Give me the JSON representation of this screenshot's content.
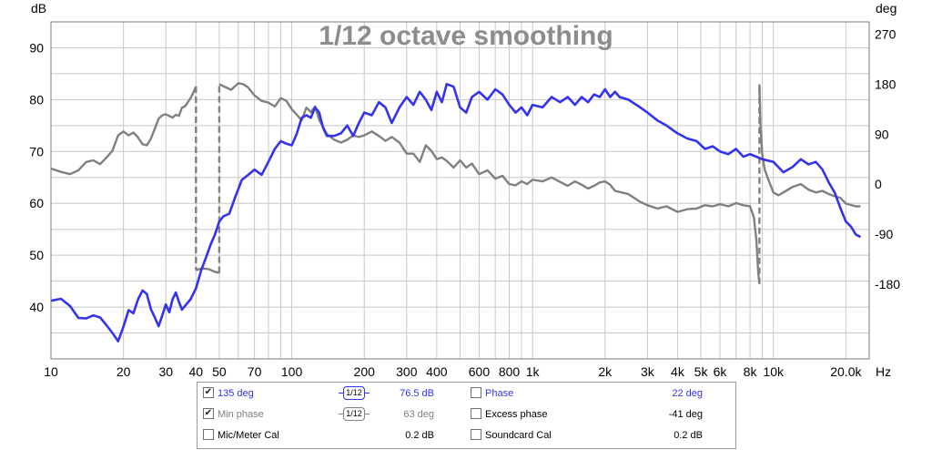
{
  "chart_data": {
    "type": "line",
    "title": "1/12 octave smoothing",
    "x_unit": "Hz",
    "left_axis": {
      "unit": "dB",
      "range": [
        30,
        95
      ],
      "ticks": [
        "90",
        "80",
        "70",
        "60",
        "50",
        "40"
      ]
    },
    "right_axis": {
      "unit": "deg",
      "range": [
        -315,
        292.5
      ],
      "ticks": [
        "270",
        "180",
        "90",
        "0",
        "-90",
        "-180"
      ]
    },
    "x_range": [
      10,
      25000
    ],
    "x_scale": "log",
    "x_tick_labels": [
      {
        "f": 10,
        "label": "10"
      },
      {
        "f": 20,
        "label": "20"
      },
      {
        "f": 30,
        "label": "30"
      },
      {
        "f": 40,
        "label": "40"
      },
      {
        "f": 50,
        "label": "50"
      },
      {
        "f": 70,
        "label": "70"
      },
      {
        "f": 100,
        "label": "100"
      },
      {
        "f": 200,
        "label": "200"
      },
      {
        "f": 300,
        "label": "300"
      },
      {
        "f": 400,
        "label": "400"
      },
      {
        "f": 600,
        "label": "600"
      },
      {
        "f": 800,
        "label": "800"
      },
      {
        "f": 1000,
        "label": "1k"
      },
      {
        "f": 2000,
        "label": "2k"
      },
      {
        "f": 3000,
        "label": "3k"
      },
      {
        "f": 4000,
        "label": "4k"
      },
      {
        "f": 5000,
        "label": "5k"
      },
      {
        "f": 6000,
        "label": "6k"
      },
      {
        "f": 8000,
        "label": "8k"
      },
      {
        "f": 10000,
        "label": "10k"
      },
      {
        "f": 20000,
        "label": "20.0k"
      }
    ],
    "grid": true,
    "colors": {
      "spl": "#3333ee",
      "phase": "#808080",
      "grid": "#c8c8c8",
      "background": "#ffffff"
    },
    "series": [
      {
        "name": "135 deg",
        "axis": "left",
        "style": "solid",
        "points": [
          [
            10,
            41.2
          ],
          [
            11,
            41.6
          ],
          [
            12,
            40.2
          ],
          [
            13,
            37.9
          ],
          [
            14,
            37.8
          ],
          [
            15,
            38.4
          ],
          [
            16,
            38.0
          ],
          [
            17,
            36.5
          ],
          [
            18,
            35.0
          ],
          [
            19,
            33.4
          ],
          [
            20,
            36.2
          ],
          [
            21,
            39.4
          ],
          [
            22,
            38.8
          ],
          [
            23,
            41.5
          ],
          [
            24,
            43.2
          ],
          [
            25,
            42.5
          ],
          [
            26,
            39.6
          ],
          [
            27,
            38.0
          ],
          [
            28,
            36.3
          ],
          [
            29,
            38.4
          ],
          [
            30,
            40.5
          ],
          [
            31,
            39.0
          ],
          [
            32,
            41.5
          ],
          [
            33,
            42.8
          ],
          [
            34,
            41.0
          ],
          [
            35,
            39.5
          ],
          [
            36,
            40.2
          ],
          [
            38,
            41.5
          ],
          [
            40,
            43.6
          ],
          [
            42,
            47.0
          ],
          [
            44,
            49.5
          ],
          [
            46,
            52.0
          ],
          [
            48,
            54.0
          ],
          [
            50,
            56.5
          ],
          [
            52,
            57.5
          ],
          [
            55,
            58.0
          ],
          [
            58,
            61.0
          ],
          [
            62,
            64.5
          ],
          [
            66,
            65.5
          ],
          [
            70,
            66.5
          ],
          [
            75,
            65.5
          ],
          [
            80,
            68.0
          ],
          [
            85,
            70.5
          ],
          [
            90,
            72.0
          ],
          [
            95,
            71.5
          ],
          [
            100,
            71.2
          ],
          [
            105,
            73.5
          ],
          [
            110,
            76.5
          ],
          [
            115,
            77.0
          ],
          [
            120,
            76.5
          ],
          [
            125,
            78.5
          ],
          [
            130,
            77.5
          ],
          [
            135,
            74.5
          ],
          [
            140,
            73.0
          ],
          [
            150,
            73.0
          ],
          [
            160,
            73.5
          ],
          [
            170,
            75.0
          ],
          [
            180,
            73.0
          ],
          [
            190,
            75.5
          ],
          [
            200,
            77.5
          ],
          [
            215,
            77.0
          ],
          [
            230,
            79.5
          ],
          [
            245,
            78.5
          ],
          [
            260,
            75.5
          ],
          [
            280,
            78.5
          ],
          [
            300,
            80.5
          ],
          [
            320,
            79.0
          ],
          [
            340,
            81.5
          ],
          [
            360,
            80.0
          ],
          [
            380,
            78.0
          ],
          [
            400,
            81.5
          ],
          [
            420,
            79.5
          ],
          [
            440,
            83.0
          ],
          [
            470,
            82.5
          ],
          [
            500,
            78.5
          ],
          [
            530,
            77.5
          ],
          [
            560,
            80.5
          ],
          [
            600,
            81.5
          ],
          [
            650,
            80.0
          ],
          [
            700,
            82.0
          ],
          [
            750,
            81.0
          ],
          [
            800,
            79.0
          ],
          [
            850,
            77.5
          ],
          [
            900,
            78.5
          ],
          [
            950,
            77.0
          ],
          [
            1000,
            79.0
          ],
          [
            1100,
            78.5
          ],
          [
            1200,
            80.5
          ],
          [
            1300,
            79.5
          ],
          [
            1400,
            80.5
          ],
          [
            1500,
            79.0
          ],
          [
            1600,
            80.5
          ],
          [
            1700,
            79.5
          ],
          [
            1800,
            81.0
          ],
          [
            1900,
            80.5
          ],
          [
            2000,
            82.0
          ],
          [
            2100,
            80.5
          ],
          [
            2200,
            81.5
          ],
          [
            2300,
            80.5
          ],
          [
            2500,
            80.0
          ],
          [
            2800,
            78.5
          ],
          [
            3000,
            77.5
          ],
          [
            3300,
            76.0
          ],
          [
            3600,
            75.0
          ],
          [
            4000,
            73.5
          ],
          [
            4400,
            72.5
          ],
          [
            4800,
            72.0
          ],
          [
            5200,
            70.5
          ],
          [
            5600,
            71.0
          ],
          [
            6000,
            70.0
          ],
          [
            6500,
            69.5
          ],
          [
            7000,
            70.5
          ],
          [
            7500,
            69.0
          ],
          [
            8000,
            69.5
          ],
          [
            8500,
            69.0
          ],
          [
            9000,
            68.5
          ],
          [
            10000,
            68.0
          ],
          [
            11000,
            66.0
          ],
          [
            12000,
            67.0
          ],
          [
            13000,
            68.5
          ],
          [
            14000,
            67.5
          ],
          [
            15000,
            68.0
          ],
          [
            16000,
            66.5
          ],
          [
            17000,
            64.0
          ],
          [
            18000,
            62.0
          ],
          [
            19000,
            59.0
          ],
          [
            20000,
            56.5
          ],
          [
            21000,
            55.5
          ],
          [
            22000,
            54.0
          ],
          [
            23000,
            53.5
          ]
        ]
      },
      {
        "name": "Min phase",
        "axis": "right",
        "style": "solid",
        "points": [
          [
            10,
            28
          ],
          [
            11,
            22
          ],
          [
            12,
            18
          ],
          [
            13,
            25
          ],
          [
            14,
            40
          ],
          [
            15,
            43
          ],
          [
            16,
            36
          ],
          [
            17,
            48
          ],
          [
            18,
            60
          ],
          [
            19,
            88
          ],
          [
            20,
            95
          ],
          [
            21,
            88
          ],
          [
            22,
            93
          ],
          [
            23,
            84
          ],
          [
            24,
            72
          ],
          [
            25,
            70
          ],
          [
            26,
            82
          ],
          [
            27,
            100
          ],
          [
            28,
            118
          ],
          [
            29,
            124
          ],
          [
            30,
            126
          ],
          [
            32,
            120
          ],
          [
            33,
            125
          ],
          [
            34,
            123
          ],
          [
            35,
            138
          ],
          [
            36,
            140
          ],
          [
            38,
            155
          ],
          [
            39,
            165
          ],
          [
            40,
            176
          ],
          [
            40,
            -155
          ],
          [
            42,
            -152
          ],
          [
            45,
            -153
          ],
          [
            48,
            -158
          ],
          [
            50,
            -160
          ],
          [
            50,
            180
          ],
          [
            53,
            175
          ],
          [
            56,
            170
          ],
          [
            60,
            182
          ],
          [
            63,
            180
          ],
          [
            66,
            174
          ],
          [
            70,
            160
          ],
          [
            75,
            150
          ],
          [
            80,
            147
          ],
          [
            85,
            140
          ],
          [
            90,
            155
          ],
          [
            95,
            150
          ],
          [
            100,
            135
          ],
          [
            105,
            125
          ],
          [
            110,
            115
          ],
          [
            115,
            138
          ],
          [
            120,
            130
          ],
          [
            125,
            140
          ],
          [
            130,
            116
          ],
          [
            140,
            90
          ],
          [
            150,
            80
          ],
          [
            160,
            75
          ],
          [
            170,
            80
          ],
          [
            180,
            88
          ],
          [
            190,
            85
          ],
          [
            200,
            88
          ],
          [
            215,
            95
          ],
          [
            230,
            87
          ],
          [
            245,
            78
          ],
          [
            260,
            85
          ],
          [
            280,
            75
          ],
          [
            300,
            55
          ],
          [
            320,
            55
          ],
          [
            340,
            40
          ],
          [
            360,
            70
          ],
          [
            380,
            60
          ],
          [
            400,
            45
          ],
          [
            420,
            48
          ],
          [
            440,
            42
          ],
          [
            470,
            30
          ],
          [
            500,
            43
          ],
          [
            530,
            30
          ],
          [
            560,
            37
          ],
          [
            600,
            18
          ],
          [
            650,
            25
          ],
          [
            700,
            10
          ],
          [
            750,
            15
          ],
          [
            800,
            0
          ],
          [
            850,
            -2
          ],
          [
            900,
            5
          ],
          [
            950,
            0
          ],
          [
            1000,
            8
          ],
          [
            1100,
            5
          ],
          [
            1200,
            12
          ],
          [
            1300,
            4
          ],
          [
            1400,
            -3
          ],
          [
            1500,
            5
          ],
          [
            1600,
            -1
          ],
          [
            1700,
            -8
          ],
          [
            1800,
            -3
          ],
          [
            1900,
            3
          ],
          [
            2000,
            5
          ],
          [
            2100,
            -1
          ],
          [
            2200,
            -12
          ],
          [
            2500,
            -18
          ],
          [
            2800,
            -32
          ],
          [
            3000,
            -38
          ],
          [
            3300,
            -44
          ],
          [
            3600,
            -40
          ],
          [
            4000,
            -50
          ],
          [
            4400,
            -45
          ],
          [
            4800,
            -44
          ],
          [
            5200,
            -38
          ],
          [
            5600,
            -40
          ],
          [
            6000,
            -36
          ],
          [
            6500,
            -40
          ],
          [
            7000,
            -34
          ],
          [
            7500,
            -38
          ],
          [
            8000,
            -40
          ],
          [
            8300,
            -60
          ],
          [
            8500,
            -100
          ],
          [
            8650,
            -160
          ],
          [
            8750,
            -180
          ],
          [
            8750,
            180
          ],
          [
            8850,
            100
          ],
          [
            9000,
            52
          ],
          [
            9200,
            27
          ],
          [
            9500,
            10
          ],
          [
            10000,
            -15
          ],
          [
            10500,
            -20
          ],
          [
            11000,
            -15
          ],
          [
            12000,
            -5
          ],
          [
            13000,
            0
          ],
          [
            14000,
            -10
          ],
          [
            15000,
            -15
          ],
          [
            16000,
            -12
          ],
          [
            17000,
            -18
          ],
          [
            18000,
            -22
          ],
          [
            19000,
            -25
          ],
          [
            20000,
            -35
          ],
          [
            22000,
            -40
          ],
          [
            23000,
            -40
          ]
        ]
      }
    ],
    "phase_wraps": [
      {
        "f": 40,
        "from_deg": 176,
        "to_deg": -155
      },
      {
        "f": 50,
        "from_deg": -160,
        "to_deg": 180
      },
      {
        "f": 8750,
        "from_deg": -180,
        "to_deg": 180
      }
    ],
    "legend": {
      "rows": [
        {
          "checked": true,
          "name": "135 deg",
          "color": "#3333ee",
          "smoothing": "1/12",
          "value": "76.5 dB",
          "name2": "Phase",
          "color2": "#3333ee",
          "checked2": false,
          "value2": "22 deg"
        },
        {
          "checked": true,
          "name": "Min phase",
          "color": "#808080",
          "smoothing": "1/12",
          "value": "63 deg",
          "name2": "Excess phase",
          "color2": "#000000",
          "checked2": false,
          "value2": "-41 deg"
        },
        {
          "checked": false,
          "name": "Mic/Meter Cal",
          "color": "#000000",
          "smoothing": "",
          "value": "0.2 dB",
          "name2": "Soundcard Cal",
          "color2": "#000000",
          "checked2": false,
          "value2": "0.2 dB"
        }
      ]
    }
  }
}
